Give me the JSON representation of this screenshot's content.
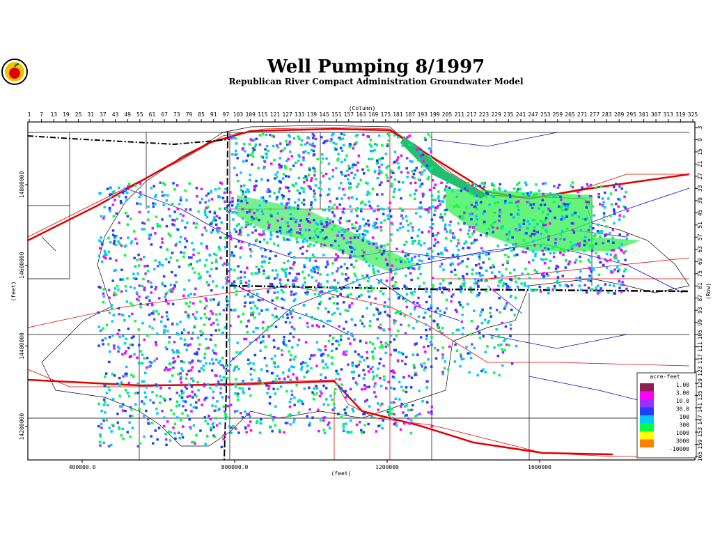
{
  "title": "Well Pumping 8/1997",
  "subtitle": "Republican River Compact Administration Groundwater Model",
  "top_axis": {
    "label": "(Column)",
    "ticks": [
      1,
      7,
      13,
      19,
      25,
      31,
      37,
      43,
      49,
      55,
      61,
      67,
      73,
      79,
      85,
      91,
      97,
      103,
      109,
      115,
      121,
      127,
      133,
      139,
      145,
      151,
      157,
      163,
      169,
      175,
      181,
      187,
      193,
      199,
      205,
      211,
      217,
      223,
      229,
      235,
      241,
      247,
      253,
      259,
      265,
      271,
      277,
      283,
      289,
      295,
      301,
      307,
      313,
      319,
      325
    ]
  },
  "right_axis": {
    "label": "(Row)",
    "ticks": [
      3,
      9,
      15,
      21,
      27,
      33,
      39,
      45,
      51,
      57,
      63,
      69,
      75,
      81,
      87,
      93,
      99,
      105,
      111,
      117,
      123,
      129,
      135,
      141,
      147,
      153,
      159,
      165
    ]
  },
  "left_axis": {
    "label": "(feet)",
    "ticks": [
      "14800000",
      "14600000",
      "14400000",
      "14200000"
    ]
  },
  "bottom_axis": {
    "label": "(feet)",
    "ticks": [
      "400000.0",
      "800000.0",
      "1200000",
      "1600000"
    ]
  },
  "legend": {
    "title": "acre-feet",
    "entries": [
      {
        "label": "1.00",
        "color": "#8b2252"
      },
      {
        "label": "3.00",
        "color": "#ff00ff"
      },
      {
        "label": "10.0",
        "color": "#9a30ff"
      },
      {
        "label": "30.0",
        "color": "#1f3fff"
      },
      {
        "label": "100",
        "color": "#00c8ff"
      },
      {
        "label": "300",
        "color": "#00ff40"
      },
      {
        "label": "1000",
        "color": "#ffff00"
      },
      {
        "label": "3000",
        "color": "#ff8000"
      },
      {
        "label": "-10000",
        "color": "#ff2000"
      }
    ]
  }
}
